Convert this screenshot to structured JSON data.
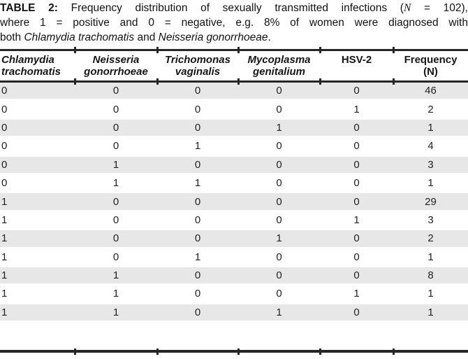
{
  "caption": {
    "label": "TABLE 2:",
    "line1_text": " Frequency distribution of sexually transmitted infections (",
    "line1_n": "N",
    "line1_suffix": " = 102),",
    "line2": "where 1 = positive and 0 = negative, e.g. 8% of women were diagnosed with",
    "line3_pre": "both ",
    "line3_species1": "Chlamydia trachomatis",
    "line3_mid": " and ",
    "line3_species2": "Neisseria gonorrhoeae",
    "line3_end": "."
  },
  "table": {
    "headers": [
      "Chlamydia\ntrachomatis",
      "Neisseria\ngonorrhoeae",
      "Trichomonas\nvaginalis",
      "Mycoplasma\ngenitalium",
      "HSV-2",
      "Frequency\n(N)"
    ],
    "rows": [
      [
        0,
        0,
        0,
        0,
        0,
        46
      ],
      [
        0,
        0,
        0,
        0,
        1,
        2
      ],
      [
        0,
        0,
        0,
        1,
        0,
        1
      ],
      [
        0,
        0,
        1,
        0,
        0,
        4
      ],
      [
        0,
        1,
        0,
        0,
        0,
        3
      ],
      [
        0,
        1,
        1,
        0,
        0,
        1
      ],
      [
        1,
        0,
        0,
        0,
        0,
        29
      ],
      [
        1,
        0,
        0,
        0,
        1,
        3
      ],
      [
        1,
        0,
        0,
        1,
        0,
        2
      ],
      [
        1,
        0,
        1,
        0,
        0,
        1
      ],
      [
        1,
        1,
        0,
        0,
        0,
        8
      ],
      [
        1,
        1,
        0,
        0,
        1,
        1
      ],
      [
        1,
        1,
        0,
        1,
        0,
        1
      ]
    ],
    "total_n": 102
  },
  "colors": {
    "rule": "#262626",
    "zebra": "#e7e7e7",
    "text": "#1d1d1d"
  }
}
